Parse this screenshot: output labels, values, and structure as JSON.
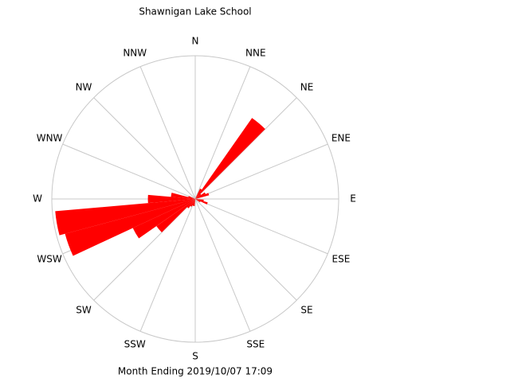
{
  "chart_data": {
    "type": "rose",
    "title": "Shawnigan Lake School",
    "caption": "Month Ending 2019/10/07 17:09",
    "x": [
      0,
      10,
      20,
      30,
      40,
      50,
      60,
      70,
      80,
      90,
      100,
      110,
      120,
      130,
      140,
      150,
      160,
      170,
      180,
      190,
      200,
      210,
      220,
      230,
      240,
      250,
      260,
      270,
      280,
      290,
      300,
      310,
      320,
      330,
      340,
      350
    ],
    "values": [
      0,
      0,
      0,
      8,
      69,
      5,
      8,
      10,
      0,
      0,
      6,
      9,
      4,
      0,
      0,
      0,
      0,
      0,
      0,
      5,
      5,
      6,
      8,
      33,
      48,
      94,
      98,
      33,
      17,
      5,
      0,
      0,
      0,
      0,
      0,
      0
    ],
    "color": "#ff0000",
    "xlim": [
      0,
      360
    ],
    "xticks": [
      {
        "value": 0,
        "label": "N"
      },
      {
        "value": 22.5,
        "label": "NNE"
      },
      {
        "value": 45,
        "label": "NE"
      },
      {
        "value": 67.5,
        "label": "ENE"
      },
      {
        "value": 90,
        "label": "E"
      },
      {
        "value": 112.5,
        "label": "ESE"
      },
      {
        "value": 135,
        "label": "SE"
      },
      {
        "value": 157.5,
        "label": "SSE"
      },
      {
        "value": 180,
        "label": "S"
      },
      {
        "value": 202.5,
        "label": "SSW"
      },
      {
        "value": 225,
        "label": "SW"
      },
      {
        "value": 247.5,
        "label": "WSW"
      },
      {
        "value": 270,
        "label": "W"
      },
      {
        "value": 292.5,
        "label": "WNW"
      },
      {
        "value": 315,
        "label": "NW"
      },
      {
        "value": 337.5,
        "label": "NNW"
      }
    ],
    "rlim": [
      0,
      100
    ]
  }
}
